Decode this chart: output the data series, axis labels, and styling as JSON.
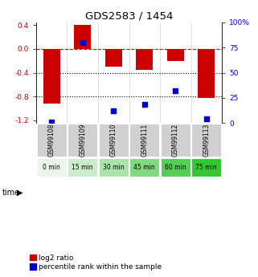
{
  "title": "GDS2583 / 1454",
  "samples": [
    "GSM99108",
    "GSM99109",
    "GSM99110",
    "GSM99111",
    "GSM99112",
    "GSM99113"
  ],
  "time_labels": [
    "0 min",
    "15 min",
    "30 min",
    "45 min",
    "60 min",
    "75 min"
  ],
  "log2_ratios": [
    -0.92,
    0.4,
    -0.3,
    -0.35,
    -0.2,
    -0.82
  ],
  "percentile_ranks": [
    1.5,
    80,
    12,
    19,
    32,
    4
  ],
  "ylim_left": [
    -1.25,
    0.45
  ],
  "ylim_right": [
    0,
    100
  ],
  "yticks_left": [
    -1.2,
    -0.8,
    -0.4,
    0.0,
    0.4
  ],
  "yticks_right": [
    0,
    25,
    50,
    75,
    100
  ],
  "bar_color": "#cc0000",
  "dot_color": "#0000cc",
  "hline_y": 0.0,
  "dotted_lines": [
    -0.4,
    -0.8
  ],
  "time_colors": [
    "#eaf6ea",
    "#ccedcc",
    "#aae4aa",
    "#80d980",
    "#55ce55",
    "#33c833"
  ],
  "sample_bg": "#d0d0d0",
  "legend_bar_label": "log2 ratio",
  "legend_dot_label": "percentile rank within the sample",
  "bar_width": 0.55
}
